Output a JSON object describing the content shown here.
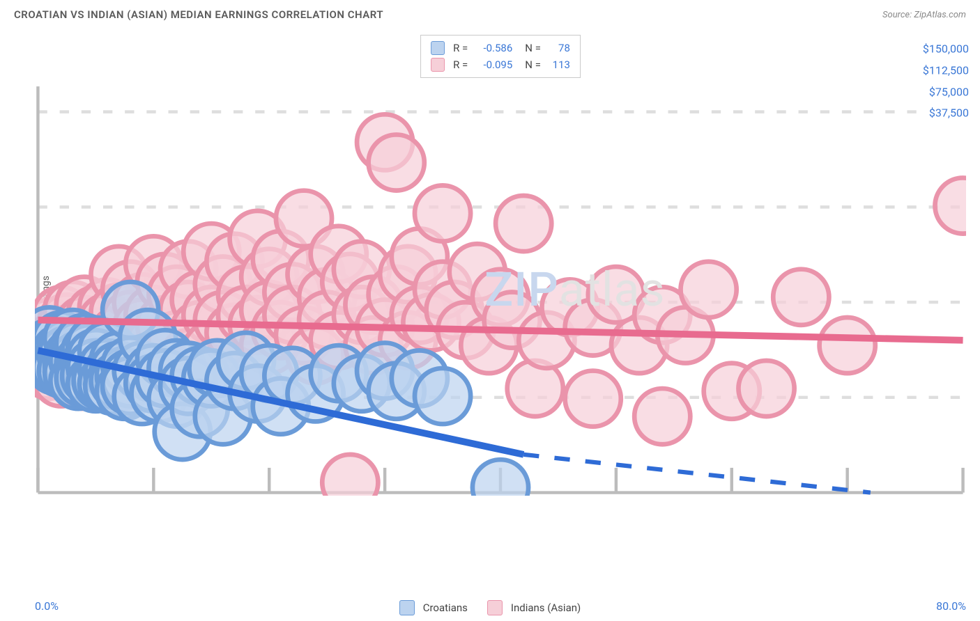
{
  "header": {
    "title": "CROATIAN VS INDIAN (ASIAN) MEDIAN EARNINGS CORRELATION CHART",
    "source": "Source: ZipAtlas.com"
  },
  "chart": {
    "type": "scatter",
    "ylabel": "Median Earnings",
    "xlim": [
      0,
      80
    ],
    "ylim": [
      0,
      160000
    ],
    "x_tick_step": 10,
    "y_ticks": [
      37500,
      75000,
      112500,
      150000
    ],
    "y_tick_labels": [
      "$37,500",
      "$75,000",
      "$112,500",
      "$150,000"
    ],
    "x_min_label": "0.0%",
    "x_max_label": "80.0%",
    "background_color": "#ffffff",
    "grid_color": "#dedede",
    "axis_color": "#bcbcbc",
    "tick_color": "#bcbcbc",
    "marker_radius": 9,
    "marker_stroke_width": 1.5,
    "trend_line_width": 2.2,
    "watermark": {
      "part1": "ZIP",
      "part2": "atlas"
    },
    "series": [
      {
        "name": "Croatians",
        "fill": "#bcd3ef",
        "stroke": "#6a9bd8",
        "swatch_fill": "#bcd3ef",
        "swatch_stroke": "#6a9bd8",
        "trend_color": "#2e6bd6",
        "trend": {
          "x0": 0,
          "y0": 56000,
          "x_solid_end": 42,
          "y_solid_end": 15000,
          "x1": 72,
          "y1": -14000
        },
        "R": "-0.586",
        "N": "78",
        "points": [
          [
            1,
            62000
          ],
          [
            1,
            57000
          ],
          [
            1,
            52000
          ],
          [
            1.5,
            50000
          ],
          [
            1.5,
            58000
          ],
          [
            2,
            60000
          ],
          [
            2,
            55000
          ],
          [
            2,
            51000
          ],
          [
            2,
            49000
          ],
          [
            2.5,
            57000
          ],
          [
            2.5,
            54000
          ],
          [
            2.5,
            48000
          ],
          [
            3,
            61000
          ],
          [
            3,
            53000
          ],
          [
            3,
            50000
          ],
          [
            3,
            47000
          ],
          [
            3.5,
            56000
          ],
          [
            3.5,
            52000
          ],
          [
            3.5,
            44000
          ],
          [
            4,
            59000
          ],
          [
            4,
            51000
          ],
          [
            4,
            48000
          ],
          [
            4,
            45000
          ],
          [
            4.5,
            55000
          ],
          [
            4.5,
            50000
          ],
          [
            4.5,
            46000
          ],
          [
            5,
            58000
          ],
          [
            5,
            53000
          ],
          [
            5,
            49000
          ],
          [
            5,
            43000
          ],
          [
            5.5,
            46000
          ],
          [
            5.5,
            44000
          ],
          [
            6,
            56000
          ],
          [
            6,
            49000
          ],
          [
            6,
            43000
          ],
          [
            6.5,
            47000
          ],
          [
            6.5,
            42000
          ],
          [
            7,
            52000
          ],
          [
            7,
            48000
          ],
          [
            7,
            44000
          ],
          [
            7.5,
            46000
          ],
          [
            7.5,
            40000
          ],
          [
            8,
            72000
          ],
          [
            8,
            50000
          ],
          [
            8,
            45000
          ],
          [
            8,
            42000
          ],
          [
            9,
            48000
          ],
          [
            9,
            38000
          ],
          [
            9.5,
            61000
          ],
          [
            10,
            47000
          ],
          [
            10,
            43000
          ],
          [
            10.5,
            39000
          ],
          [
            11,
            53000
          ],
          [
            11,
            45000
          ],
          [
            12,
            49000
          ],
          [
            12,
            37000
          ],
          [
            12.5,
            24000
          ],
          [
            13,
            48000
          ],
          [
            13,
            42000
          ],
          [
            14,
            46000
          ],
          [
            14,
            33000
          ],
          [
            15,
            45000
          ],
          [
            15.5,
            49000
          ],
          [
            16,
            30000
          ],
          [
            17,
            44000
          ],
          [
            18,
            52000
          ],
          [
            19,
            39000
          ],
          [
            20,
            47000
          ],
          [
            21,
            34000
          ],
          [
            22,
            46000
          ],
          [
            24,
            39000
          ],
          [
            26,
            47000
          ],
          [
            28,
            43000
          ],
          [
            30,
            48000
          ],
          [
            31,
            40000
          ],
          [
            33,
            45000
          ],
          [
            35,
            38000
          ],
          [
            40,
            2000
          ]
        ]
      },
      {
        "name": "Indians (Asian)",
        "fill": "#f6cfd8",
        "stroke": "#ea94ab",
        "swatch_fill": "#f6cfd8",
        "swatch_stroke": "#ea94ab",
        "trend_color": "#e86b8f",
        "trend": {
          "x0": 0,
          "y0": 68000,
          "x_solid_end": 80,
          "y_solid_end": 60000,
          "x1": 80,
          "y1": 60000
        },
        "R": "-0.095",
        "N": "113",
        "points": [
          [
            1,
            65000
          ],
          [
            1,
            58000
          ],
          [
            1,
            48000
          ],
          [
            1.5,
            60000
          ],
          [
            2,
            70000
          ],
          [
            2,
            62000
          ],
          [
            2,
            52000
          ],
          [
            2,
            45000
          ],
          [
            2.5,
            67000
          ],
          [
            2.5,
            55000
          ],
          [
            3,
            72000
          ],
          [
            3,
            63000
          ],
          [
            3,
            54000
          ],
          [
            3,
            47000
          ],
          [
            3.5,
            59000
          ],
          [
            3.5,
            50000
          ],
          [
            4,
            74000
          ],
          [
            4,
            66000
          ],
          [
            4,
            58000
          ],
          [
            4,
            44000
          ],
          [
            5,
            70000
          ],
          [
            5,
            61000
          ],
          [
            5,
            55000
          ],
          [
            5,
            49000
          ],
          [
            6,
            73000
          ],
          [
            6,
            67000
          ],
          [
            6,
            58000
          ],
          [
            7,
            86000
          ],
          [
            7,
            71000
          ],
          [
            7,
            62000
          ],
          [
            8,
            80000
          ],
          [
            8,
            68000
          ],
          [
            8,
            56000
          ],
          [
            9,
            75000
          ],
          [
            9,
            65000
          ],
          [
            10,
            90000
          ],
          [
            10,
            70000
          ],
          [
            10,
            58000
          ],
          [
            11,
            83000
          ],
          [
            11,
            66000
          ],
          [
            12,
            78000
          ],
          [
            12,
            60000
          ],
          [
            13,
            88000
          ],
          [
            13,
            72000
          ],
          [
            13,
            53000
          ],
          [
            14,
            76000
          ],
          [
            14,
            64000
          ],
          [
            15,
            95000
          ],
          [
            15,
            70000
          ],
          [
            15,
            56000
          ],
          [
            16,
            82000
          ],
          [
            16,
            68000
          ],
          [
            17,
            91000
          ],
          [
            17,
            63000
          ],
          [
            18,
            78000
          ],
          [
            18,
            70000
          ],
          [
            19,
            100000
          ],
          [
            19,
            66000
          ],
          [
            20,
            85000
          ],
          [
            20,
            72000
          ],
          [
            20,
            58000
          ],
          [
            21,
            92000
          ],
          [
            21,
            64000
          ],
          [
            22,
            79000
          ],
          [
            22,
            70000
          ],
          [
            23,
            108000
          ],
          [
            23,
            62000
          ],
          [
            24,
            86000
          ],
          [
            24,
            54000
          ],
          [
            25,
            77000
          ],
          [
            25,
            68000
          ],
          [
            26,
            94000
          ],
          [
            26,
            60000
          ],
          [
            27,
            83000
          ],
          [
            27,
            4000
          ],
          [
            28,
            88000
          ],
          [
            28,
            70000
          ],
          [
            29,
            74000
          ],
          [
            29,
            58000
          ],
          [
            30,
            138000
          ],
          [
            30,
            65000
          ],
          [
            31,
            130000
          ],
          [
            31,
            78000
          ],
          [
            32,
            86000
          ],
          [
            32,
            60000
          ],
          [
            33,
            93000
          ],
          [
            33,
            70000
          ],
          [
            34,
            67000
          ],
          [
            35,
            110000
          ],
          [
            35,
            80000
          ],
          [
            36,
            72000
          ],
          [
            37,
            64000
          ],
          [
            38,
            87000
          ],
          [
            39,
            58000
          ],
          [
            40,
            77000
          ],
          [
            41,
            68000
          ],
          [
            42,
            106000
          ],
          [
            43,
            41000
          ],
          [
            44,
            60000
          ],
          [
            46,
            73000
          ],
          [
            48,
            65000
          ],
          [
            48,
            37000
          ],
          [
            50,
            78000
          ],
          [
            52,
            58000
          ],
          [
            54,
            70000
          ],
          [
            54,
            30000
          ],
          [
            56,
            62000
          ],
          [
            58,
            80000
          ],
          [
            60,
            40000
          ],
          [
            63,
            41000
          ],
          [
            66,
            77000
          ],
          [
            70,
            58000
          ],
          [
            80,
            113000
          ]
        ]
      }
    ],
    "legend": {
      "items": [
        {
          "label": "Croatians",
          "fill": "#bcd3ef",
          "stroke": "#6a9bd8"
        },
        {
          "label": "Indians (Asian)",
          "fill": "#f6cfd8",
          "stroke": "#ea94ab"
        }
      ]
    }
  }
}
